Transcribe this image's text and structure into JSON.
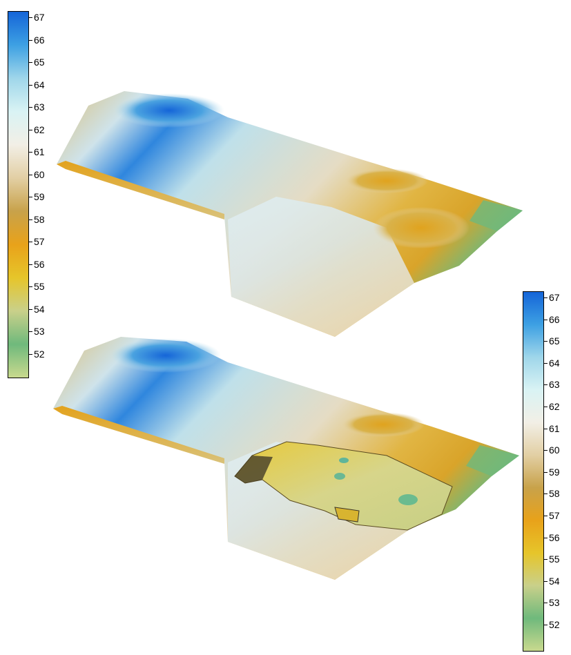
{
  "colorbars": [
    {
      "id": "cb1",
      "ticks": [
        "67",
        "66",
        "65",
        "64",
        "63",
        "62",
        "61",
        "60",
        "59",
        "58",
        "57",
        "56",
        "55",
        "54",
        "53",
        "52"
      ]
    },
    {
      "id": "cb2",
      "ticks": [
        "67",
        "66",
        "65",
        "64",
        "63",
        "62",
        "61",
        "60",
        "59",
        "58",
        "57",
        "56",
        "55",
        "54",
        "53",
        "52"
      ]
    }
  ],
  "colormap": {
    "stops": [
      "#1565d8",
      "#3da0e3",
      "#9fd6ea",
      "#d9f3f4",
      "#f2efe6",
      "#e2cfa4",
      "#c8a24a",
      "#e8a21a",
      "#e6c52a",
      "#c9d08a",
      "#6fb97c",
      "#c9d98e"
    ]
  },
  "surfaces": [
    {
      "name": "surface-before",
      "description_hidden": true
    },
    {
      "name": "surface-after-excavation",
      "description_hidden": true
    }
  ]
}
